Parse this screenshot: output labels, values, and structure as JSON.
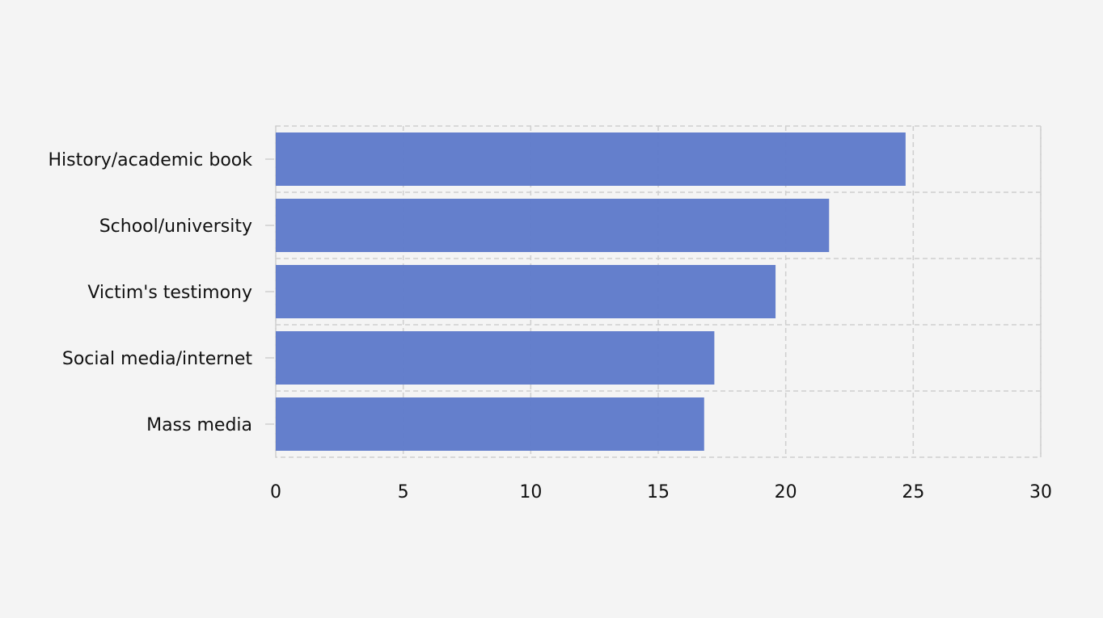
{
  "chart_data": {
    "type": "bar",
    "orientation": "horizontal",
    "title": "",
    "xlabel": "",
    "ylabel": "",
    "categories": [
      "History/academic book",
      "School/university",
      "Victim's testimony",
      "Social media/internet",
      "Mass media"
    ],
    "values": [
      24.7,
      21.7,
      19.6,
      17.2,
      16.8
    ],
    "xlim": [
      0,
      30
    ],
    "xticks": [
      0,
      5,
      10,
      15,
      20,
      25,
      30
    ],
    "xtick_labels": [
      "0",
      "5",
      "10",
      "15",
      "20",
      "25",
      "30"
    ],
    "grid": true,
    "legend": "none",
    "colors": {
      "bar": "#5f7bca",
      "background": "#f4f4f4",
      "grid": "#cfcfcf",
      "text": "#111111"
    }
  }
}
